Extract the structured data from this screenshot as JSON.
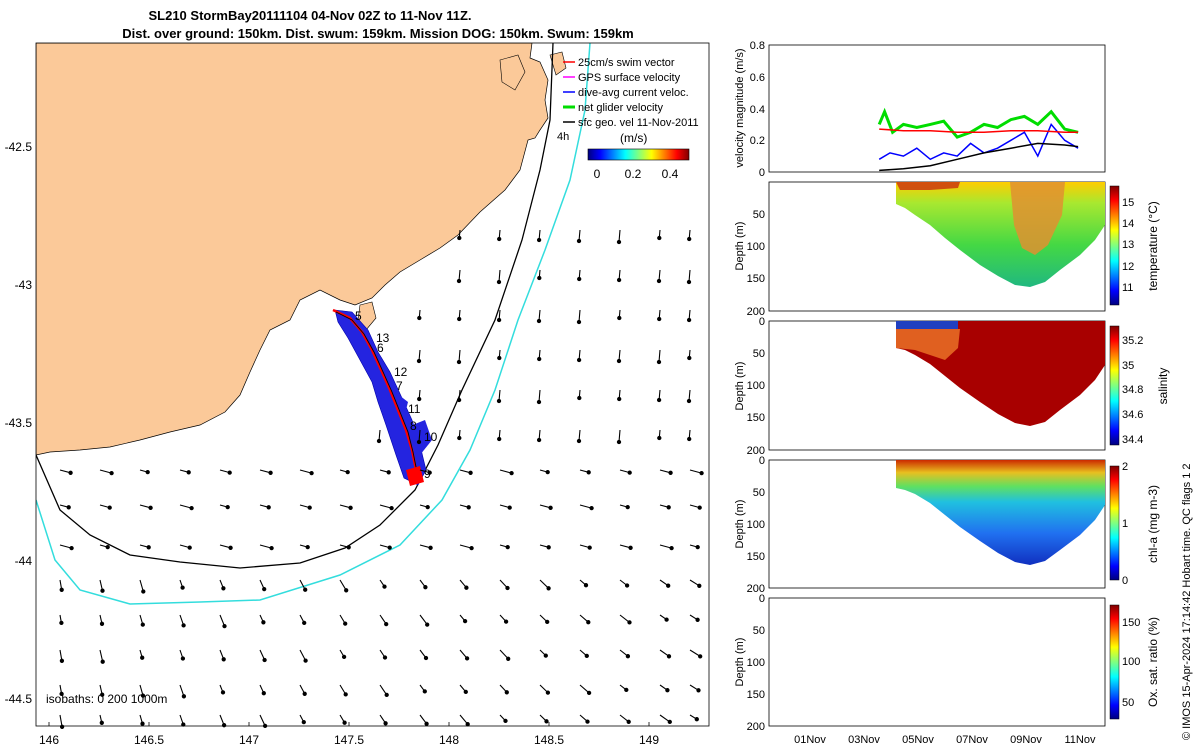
{
  "title": {
    "line1": "SL210 StormBay20111104 04-Nov 02Z to 11-Nov 11Z.",
    "line2": "Dist. over ground: 150km. Dist. swum: 159km. Mission DOG: 150km. Swum: 159km"
  },
  "map": {
    "lon_ticks": [
      "146",
      "146.5",
      "147",
      "147.5",
      "148",
      "148.5",
      "149"
    ],
    "lat_ticks": [
      "-42.5",
      "-43",
      "-43.5",
      "-44",
      "-44.5"
    ],
    "isobath_label": "isobaths: 0   200  1000m",
    "legend": [
      {
        "label": "25cm/s swim vector",
        "color": "#ff0000"
      },
      {
        "label": "GPS surface velocity",
        "color": "#ff00ff"
      },
      {
        "label": "dive-avg current veloc.",
        "color": "#0000ff"
      },
      {
        "label": "net glider velocity",
        "color": "#00dd00"
      },
      {
        "label": "sfc geo. vel 11-Nov-2011",
        "color": "#000000"
      }
    ],
    "legend_extra": "4h",
    "colorbar_title": "(m/s)",
    "colorbar_ticks": [
      "0",
      "0.2",
      "0.4"
    ],
    "day_labels": [
      {
        "text": "5"
      },
      {
        "text": "13"
      },
      {
        "text": "6"
      },
      {
        "text": "12"
      },
      {
        "text": "7"
      },
      {
        "text": "11"
      },
      {
        "text": "8"
      },
      {
        "text": "10"
      },
      {
        "text": "9"
      }
    ]
  },
  "panels": {
    "velocity": {
      "ylabel": "velocity magnitude (m/s)",
      "yticks": [
        "0",
        "0.2",
        "0.4",
        "0.6",
        "0.8"
      ]
    },
    "temperature": {
      "ylabel": "Depth (m)",
      "cbar_label": "temperature (°C)",
      "cbar_ticks": [
        "11",
        "12",
        "13",
        "14",
        "15"
      ],
      "yticks": [
        "0",
        "50",
        "100",
        "150",
        "200"
      ]
    },
    "salinity": {
      "ylabel": "Depth (m)",
      "cbar_label": "salinity",
      "cbar_ticks": [
        "34.4",
        "34.6",
        "34.8",
        "35",
        "35.2"
      ],
      "yticks": [
        "0",
        "50",
        "100",
        "150",
        "200"
      ]
    },
    "chla": {
      "ylabel": "Depth (m)",
      "cbar_label": "chl-a (mg m-3)",
      "cbar_ticks": [
        "0",
        "1",
        "2"
      ],
      "yticks": [
        "0",
        "50",
        "100",
        "150",
        "200"
      ]
    },
    "oxygen": {
      "ylabel": "Depth (m)",
      "cbar_label": "Ox. sat. ratio (%)",
      "cbar_ticks": [
        "50",
        "100",
        "150"
      ],
      "yticks": [
        "0",
        "50",
        "100",
        "150",
        "200"
      ]
    },
    "xticks": [
      "01Nov",
      "03Nov",
      "05Nov",
      "07Nov",
      "09Nov",
      "11Nov"
    ]
  },
  "side_note": "© IMOS 15-Apr-2024 17:14:42 Hobart time. QC flags 1  2",
  "chart_data": [
    {
      "type": "line",
      "panel": "velocity",
      "ylim": [
        0,
        0.8
      ],
      "x_labels": [
        "01Nov",
        "03Nov",
        "05Nov",
        "07Nov",
        "09Nov",
        "11Nov"
      ],
      "series": [
        {
          "name": "net glider velocity",
          "color": "#00dd00",
          "x": [
            4.1,
            4.3,
            4.6,
            5.0,
            5.5,
            6.0,
            6.5,
            7.0,
            7.5,
            8.0,
            8.5,
            9.0,
            9.5,
            10.0,
            10.5,
            11.0,
            11.5
          ],
          "y": [
            0.3,
            0.38,
            0.25,
            0.3,
            0.28,
            0.3,
            0.32,
            0.22,
            0.25,
            0.3,
            0.28,
            0.33,
            0.35,
            0.3,
            0.38,
            0.27,
            0.25
          ]
        },
        {
          "name": "dive-avg current veloc.",
          "color": "#0000ff",
          "x": [
            4.1,
            4.5,
            5.0,
            5.5,
            6.0,
            6.5,
            7.0,
            7.5,
            8.0,
            8.5,
            9.0,
            9.5,
            10.0,
            10.5,
            11.0,
            11.5
          ],
          "y": [
            0.08,
            0.12,
            0.1,
            0.15,
            0.08,
            0.12,
            0.1,
            0.18,
            0.12,
            0.15,
            0.2,
            0.25,
            0.1,
            0.3,
            0.2,
            0.15
          ]
        },
        {
          "name": "25cm/s swim vector",
          "color": "#ff0000",
          "x": [
            4.1,
            5.0,
            6.0,
            7.0,
            8.0,
            9.0,
            10.0,
            11.0,
            11.5
          ],
          "y": [
            0.27,
            0.26,
            0.26,
            0.25,
            0.25,
            0.26,
            0.26,
            0.25,
            0.25
          ]
        },
        {
          "name": "sfc geo. vel 11-Nov-2011",
          "color": "#000000",
          "x": [
            4.1,
            5.0,
            6.0,
            7.0,
            8.0,
            9.0,
            10.0,
            11.0,
            11.5
          ],
          "y": [
            0.01,
            0.02,
            0.04,
            0.08,
            0.12,
            0.15,
            0.18,
            0.17,
            0.16
          ]
        }
      ]
    },
    {
      "type": "heatmap",
      "panel": "temperature",
      "ylim": [
        200,
        0
      ],
      "zlim": [
        10.5,
        15.8
      ]
    },
    {
      "type": "heatmap",
      "panel": "salinity",
      "ylim": [
        200,
        0
      ],
      "zlim": [
        34.35,
        35.3
      ]
    },
    {
      "type": "heatmap",
      "panel": "chla",
      "ylim": [
        200,
        0
      ],
      "zlim": [
        0,
        2
      ]
    },
    {
      "type": "heatmap",
      "panel": "oxygen",
      "ylim": [
        200,
        0
      ],
      "zlim": [
        25,
        170
      ]
    }
  ]
}
